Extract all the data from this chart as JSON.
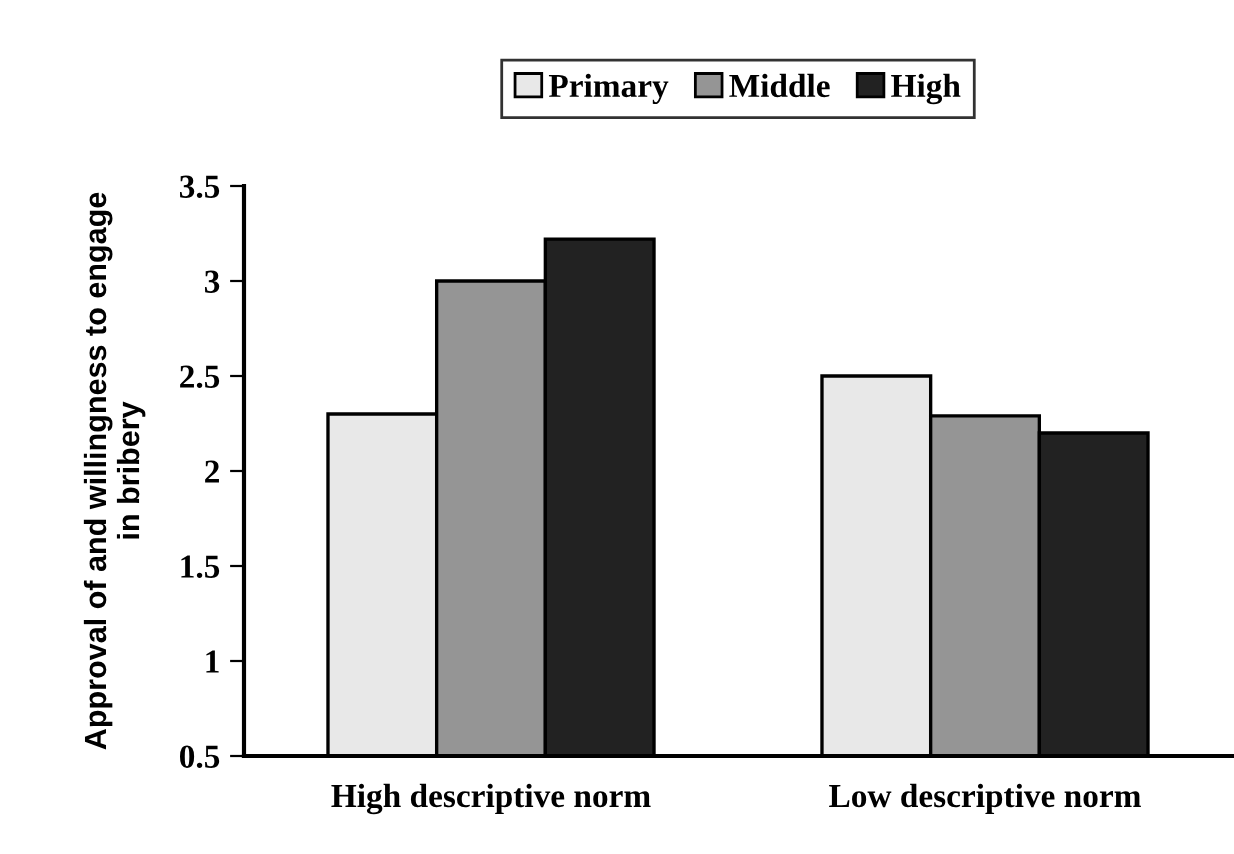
{
  "chart_data": {
    "type": "bar",
    "ylabel": "Approval of and willingness to engage\nin bribery",
    "categories": [
      "High descriptive norm",
      "Low descriptive norm"
    ],
    "series": [
      {
        "name": "Primary",
        "color": "#e8e8e8",
        "values": [
          2.3,
          2.5
        ]
      },
      {
        "name": "Middle",
        "color": "#959595",
        "values": [
          3.0,
          2.29
        ]
      },
      {
        "name": "High",
        "color": "#222222",
        "values": [
          3.22,
          2.2
        ]
      }
    ],
    "ylim": [
      0.5,
      3.5
    ],
    "yticks": [
      0.5,
      1,
      1.5,
      2,
      2.5,
      3,
      3.5
    ],
    "grid": false,
    "legend": "top"
  }
}
